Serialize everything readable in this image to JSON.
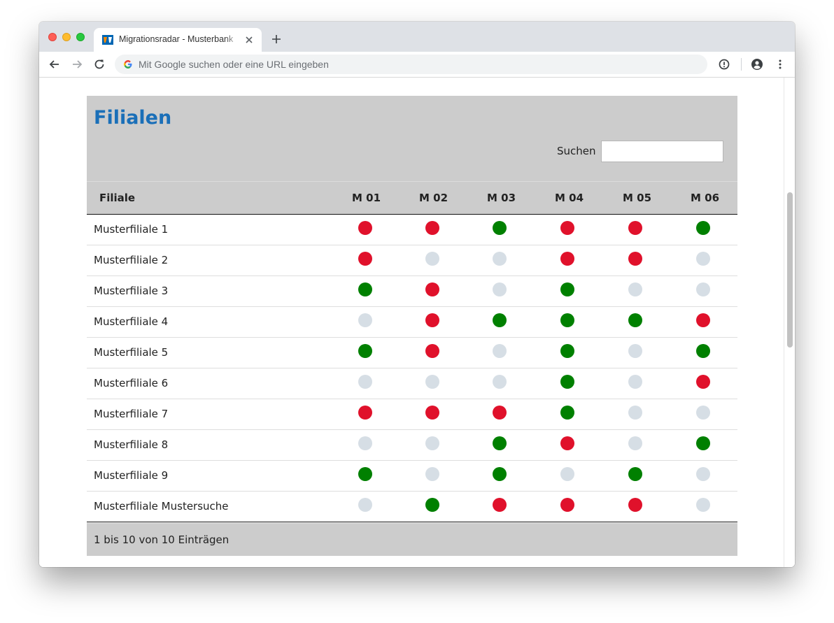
{
  "browser": {
    "tab_title": "Migrationsradar - Musterbank",
    "omnibox_placeholder": "Mit Google suchen oder eine URL eingeben"
  },
  "page": {
    "title": "Filialen",
    "search_label": "Suchen",
    "search_value": "",
    "columns": [
      "Filiale",
      "M 01",
      "M 02",
      "M 03",
      "M 04",
      "M 05",
      "M 06"
    ],
    "rows": [
      {
        "name": "Musterfiliale 1",
        "status": [
          "red",
          "red",
          "green",
          "red",
          "red",
          "green"
        ]
      },
      {
        "name": "Musterfiliale 2",
        "status": [
          "red",
          "grey",
          "grey",
          "red",
          "red",
          "grey"
        ]
      },
      {
        "name": "Musterfiliale 3",
        "status": [
          "green",
          "red",
          "grey",
          "green",
          "grey",
          "grey"
        ]
      },
      {
        "name": "Musterfiliale 4",
        "status": [
          "grey",
          "red",
          "green",
          "green",
          "green",
          "red"
        ]
      },
      {
        "name": "Musterfiliale 5",
        "status": [
          "green",
          "red",
          "grey",
          "green",
          "grey",
          "green"
        ]
      },
      {
        "name": "Musterfiliale 6",
        "status": [
          "grey",
          "grey",
          "grey",
          "green",
          "grey",
          "red"
        ]
      },
      {
        "name": "Musterfiliale 7",
        "status": [
          "red",
          "red",
          "red",
          "green",
          "grey",
          "grey"
        ]
      },
      {
        "name": "Musterfiliale 8",
        "status": [
          "grey",
          "grey",
          "green",
          "red",
          "grey",
          "green"
        ]
      },
      {
        "name": "Musterfiliale 9",
        "status": [
          "green",
          "grey",
          "green",
          "grey",
          "green",
          "grey"
        ]
      },
      {
        "name": "Musterfiliale Mustersuche",
        "status": [
          "grey",
          "green",
          "red",
          "red",
          "red",
          "grey"
        ]
      }
    ],
    "info": "1 bis 10 von 10 Einträgen"
  },
  "colors": {
    "title_blue": "#1a6fb8",
    "red": "#e0112b",
    "green": "#008000",
    "grey": "#d6dee5",
    "header_bg": "#cccccc"
  },
  "icons": {
    "tab": [
      "favicon-icon",
      "close-icon",
      "plus-icon"
    ],
    "toolbar": [
      "back-arrow-icon",
      "forward-arrow-icon",
      "reload-icon",
      "google-g-icon",
      "info-icon",
      "account-icon",
      "kebab-menu-icon"
    ]
  }
}
